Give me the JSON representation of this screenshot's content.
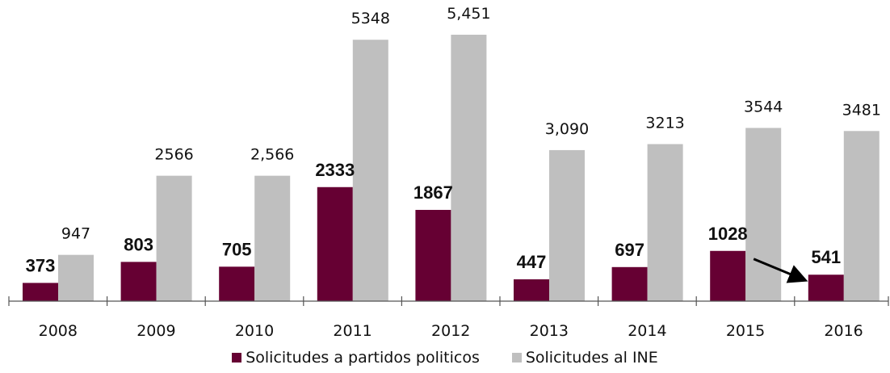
{
  "chart_data": {
    "type": "bar",
    "categories": [
      "2008",
      "2009",
      "2010",
      "2011",
      "2012",
      "2013",
      "2014",
      "2015",
      "2016"
    ],
    "series": [
      {
        "name": "Solicitudes a partidos politicos",
        "color": "#660033",
        "values": [
          373,
          803,
          705,
          2333,
          1867,
          447,
          697,
          1028,
          541
        ],
        "labels": [
          "373",
          "803",
          "705",
          "2333",
          "1867",
          "447",
          "697",
          "1028",
          "541"
        ]
      },
      {
        "name": "Solicitudes al INE",
        "color": "#bfbfbf",
        "values": [
          947,
          2566,
          2566,
          5348,
          5451,
          3090,
          3213,
          3544,
          3481
        ],
        "labels": [
          "947",
          "2566",
          "2,566",
          "5348",
          "5,451",
          "3,090",
          "3213",
          "3544",
          "3481"
        ]
      }
    ],
    "ylim": [
      0,
      5800
    ],
    "grid": false,
    "legend_position": "bottom",
    "annotations": [
      {
        "type": "arrow",
        "from_category": "2015",
        "to_category": "2016",
        "series": "Solicitudes a partidos politicos"
      }
    ]
  }
}
